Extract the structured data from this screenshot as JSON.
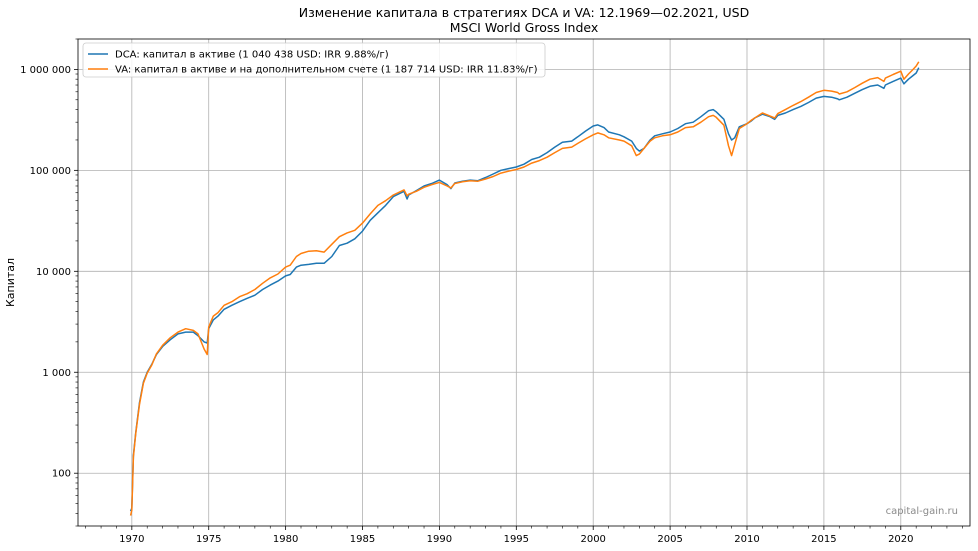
{
  "chart_data": {
    "type": "line",
    "title": "Изменение капитала в стратегиях DCA и VA: 12.1969—02.2021, USD",
    "subtitle": "MSCI World Gross Index",
    "ylabel": "Капитал",
    "xlabel": "",
    "yscale": "log",
    "ylim": [
      30,
      2000000
    ],
    "xlim": [
      1966.5,
      2024.5
    ],
    "grid": true,
    "legend_position": "top-left",
    "x_ticks": [
      1970,
      1975,
      1980,
      1985,
      1990,
      1995,
      2000,
      2005,
      2010,
      2015,
      2020
    ],
    "x_tick_labels": [
      "1970",
      "1975",
      "1980",
      "1985",
      "1990",
      "1995",
      "2000",
      "2005",
      "2010",
      "2015",
      "2020"
    ],
    "y_ticks": [
      100,
      1000,
      10000,
      100000,
      1000000
    ],
    "y_tick_labels": [
      "100",
      "1 000",
      "10 000",
      "100 000",
      "1 000 000"
    ],
    "series": [
      {
        "name": "DCA: капитал в активе (1 040 438 USD: IRR 9.88%/г)",
        "color": "#1f77b4",
        "x": [
          1969.92,
          1970.0,
          1970.1,
          1970.25,
          1970.5,
          1970.75,
          1971.0,
          1971.3,
          1971.6,
          1972.0,
          1972.5,
          1973.0,
          1973.5,
          1974.0,
          1974.3,
          1974.7,
          1974.9,
          1975.0,
          1975.3,
          1975.6,
          1976.0,
          1976.5,
          1977.0,
          1977.5,
          1978.0,
          1978.5,
          1979.0,
          1979.5,
          1980.0,
          1980.3,
          1980.7,
          1981.0,
          1981.5,
          1982.0,
          1982.5,
          1983.0,
          1983.5,
          1984.0,
          1984.5,
          1985.0,
          1985.5,
          1986.0,
          1986.5,
          1987.0,
          1987.7,
          1987.9,
          1988.0,
          1988.5,
          1989.0,
          1989.5,
          1990.0,
          1990.5,
          1990.75,
          1991.0,
          1991.5,
          1992.0,
          1992.5,
          1993.0,
          1993.5,
          1994.0,
          1994.5,
          1995.0,
          1995.5,
          1996.0,
          1996.5,
          1997.0,
          1997.5,
          1998.0,
          1998.6,
          1999.0,
          1999.5,
          2000.0,
          2000.3,
          2000.7,
          2001.0,
          2001.7,
          2002.0,
          2002.5,
          2002.8,
          2003.0,
          2003.3,
          2003.7,
          2004.0,
          2004.5,
          2005.0,
          2005.5,
          2006.0,
          2006.5,
          2007.0,
          2007.5,
          2007.8,
          2008.0,
          2008.5,
          2008.8,
          2009.0,
          2009.2,
          2009.5,
          2010.0,
          2010.3,
          2010.5,
          2011.0,
          2011.5,
          2011.8,
          2012.0,
          2012.5,
          2013.0,
          2013.5,
          2014.0,
          2014.5,
          2015.0,
          2015.5,
          2015.9,
          2016.0,
          2016.5,
          2017.0,
          2017.5,
          2018.0,
          2018.5,
          2018.9,
          2019.0,
          2019.5,
          2020.0,
          2020.2,
          2020.5,
          2020.8,
          2021.0,
          2021.17
        ],
        "values": [
          42,
          45,
          150,
          250,
          500,
          800,
          1000,
          1200,
          1500,
          1800,
          2100,
          2400,
          2500,
          2500,
          2300,
          2000,
          1950,
          2700,
          3300,
          3600,
          4200,
          4600,
          5000,
          5400,
          5800,
          6600,
          7300,
          8000,
          9000,
          9300,
          11000,
          11500,
          11700,
          12000,
          12000,
          14000,
          18000,
          19000,
          21000,
          25000,
          32000,
          38000,
          45000,
          55000,
          62000,
          52000,
          57000,
          63000,
          70000,
          74000,
          80000,
          72000,
          66000,
          75000,
          78000,
          80000,
          79000,
          85000,
          92000,
          100000,
          104000,
          108000,
          115000,
          128000,
          135000,
          150000,
          170000,
          190000,
          195000,
          215000,
          245000,
          275000,
          282000,
          265000,
          240000,
          225000,
          215000,
          195000,
          165000,
          155000,
          165000,
          200000,
          220000,
          230000,
          240000,
          260000,
          290000,
          300000,
          340000,
          390000,
          400000,
          380000,
          320000,
          230000,
          200000,
          210000,
          270000,
          290000,
          310000,
          330000,
          360000,
          340000,
          320000,
          350000,
          370000,
          400000,
          430000,
          470000,
          520000,
          540000,
          530000,
          510000,
          500000,
          530000,
          580000,
          630000,
          680000,
          700000,
          650000,
          700000,
          760000,
          820000,
          720000,
          800000,
          870000,
          920000,
          1040438
        ]
      },
      {
        "name": "VA: капитал в активе и на дополнительном счете (1 187 714 USD: IRR 11.83%/г)",
        "color": "#ff7f0e",
        "x": [
          1969.92,
          1970.0,
          1970.1,
          1970.25,
          1970.5,
          1970.75,
          1971.0,
          1971.3,
          1971.6,
          1972.0,
          1972.5,
          1973.0,
          1973.5,
          1974.0,
          1974.3,
          1974.7,
          1974.9,
          1975.0,
          1975.3,
          1975.6,
          1976.0,
          1976.5,
          1977.0,
          1977.5,
          1978.0,
          1978.5,
          1979.0,
          1979.5,
          1980.0,
          1980.3,
          1980.7,
          1981.0,
          1981.5,
          1982.0,
          1982.5,
          1983.0,
          1983.5,
          1984.0,
          1984.5,
          1985.0,
          1985.5,
          1986.0,
          1986.5,
          1987.0,
          1987.7,
          1987.9,
          1988.0,
          1988.5,
          1989.0,
          1989.5,
          1990.0,
          1990.5,
          1990.75,
          1991.0,
          1991.5,
          1992.0,
          1992.5,
          1993.0,
          1993.5,
          1994.0,
          1994.5,
          1995.0,
          1995.5,
          1996.0,
          1996.5,
          1997.0,
          1997.5,
          1998.0,
          1998.6,
          1999.0,
          1999.5,
          2000.0,
          2000.3,
          2000.7,
          2001.0,
          2001.7,
          2002.0,
          2002.5,
          2002.8,
          2003.0,
          2003.3,
          2003.7,
          2004.0,
          2004.5,
          2005.0,
          2005.5,
          2006.0,
          2006.5,
          2007.0,
          2007.5,
          2007.8,
          2008.0,
          2008.5,
          2008.8,
          2009.0,
          2009.2,
          2009.5,
          2010.0,
          2010.3,
          2010.5,
          2011.0,
          2011.5,
          2011.8,
          2012.0,
          2012.5,
          2013.0,
          2013.5,
          2014.0,
          2014.5,
          2015.0,
          2015.5,
          2015.9,
          2016.0,
          2016.5,
          2017.0,
          2017.5,
          2018.0,
          2018.5,
          2018.9,
          2019.0,
          2019.5,
          2020.0,
          2020.2,
          2020.5,
          2020.8,
          2021.0,
          2021.17
        ],
        "values": [
          38,
          43,
          145,
          245,
          480,
          780,
          980,
          1180,
          1520,
          1850,
          2200,
          2500,
          2700,
          2600,
          2400,
          1700,
          1500,
          2800,
          3600,
          3900,
          4600,
          5000,
          5600,
          6000,
          6600,
          7600,
          8600,
          9400,
          11000,
          11500,
          14000,
          15000,
          15800,
          16000,
          15500,
          18500,
          22000,
          24000,
          25500,
          30000,
          37000,
          45000,
          50000,
          57000,
          64000,
          56000,
          58000,
          62000,
          68000,
          72000,
          76000,
          70000,
          67000,
          74000,
          77000,
          79000,
          78000,
          82000,
          87000,
          94000,
          98000,
          102000,
          108000,
          118000,
          125000,
          135000,
          150000,
          165000,
          170000,
          185000,
          205000,
          225000,
          235000,
          225000,
          210000,
          200000,
          195000,
          175000,
          140000,
          145000,
          165000,
          195000,
          210000,
          220000,
          225000,
          240000,
          265000,
          270000,
          300000,
          340000,
          350000,
          335000,
          280000,
          175000,
          140000,
          180000,
          260000,
          290000,
          315000,
          330000,
          370000,
          345000,
          330000,
          365000,
          400000,
          440000,
          480000,
          530000,
          590000,
          620000,
          610000,
          590000,
          570000,
          600000,
          660000,
          730000,
          800000,
          830000,
          760000,
          820000,
          890000,
          960000,
          800000,
          900000,
          1000000,
          1080000,
          1187714
        ]
      }
    ],
    "watermark": "capital-gain.ru"
  }
}
